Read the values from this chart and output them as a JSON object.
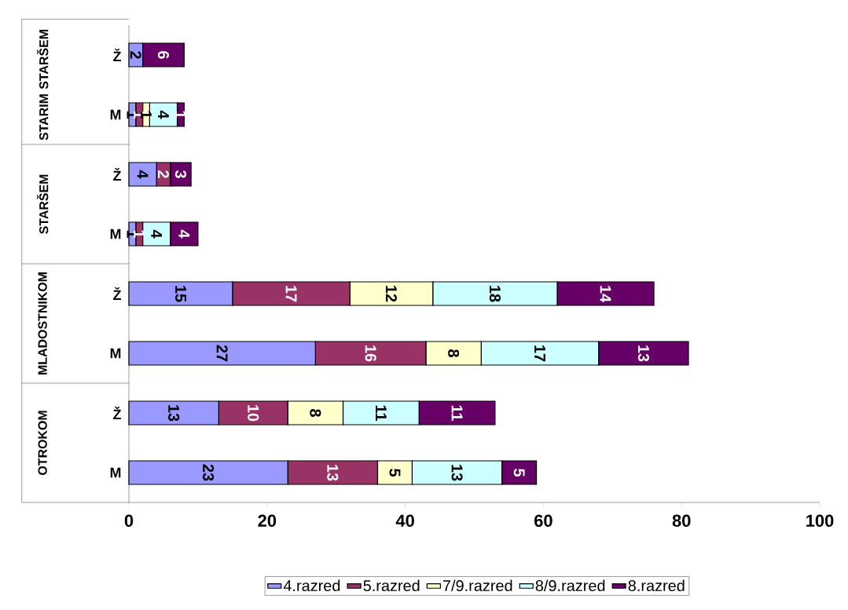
{
  "chart_data": {
    "type": "bar",
    "orientation": "horizontal",
    "stacked": true,
    "categories": [
      "Ž",
      "M",
      "Ž",
      "M",
      "Ž",
      "M",
      "Ž",
      "M"
    ],
    "annotations": [
      "STARIM STARŠEM",
      "STARŠEM",
      "MLADOSTNIKOM",
      "OTROKOM"
    ],
    "series": [
      {
        "name": "4.razred",
        "color": "#9999ff",
        "values": [
          2,
          1,
          4,
          1,
          15,
          27,
          13,
          23
        ],
        "value_labels": [
          "2",
          "1",
          "4",
          "1",
          "15",
          "27",
          "13",
          "23"
        ]
      },
      {
        "name": "5.razred",
        "color": "#993366",
        "values": [
          0,
          1,
          2,
          1,
          17,
          16,
          10,
          13
        ],
        "value_labels": [
          null,
          "1",
          "2",
          "1",
          "17",
          "16",
          "10",
          "13"
        ]
      },
      {
        "name": "7/9.razred",
        "color": "#ffffcc",
        "values": [
          0,
          1,
          0,
          0,
          12,
          8,
          8,
          5
        ],
        "value_labels": [
          null,
          "1",
          null,
          null,
          "12",
          "8",
          "8",
          "5"
        ]
      },
      {
        "name": "8/9.razred",
        "color": "#ccffff",
        "values": [
          0,
          4,
          0,
          4,
          18,
          17,
          11,
          13
        ],
        "value_labels": [
          null,
          "4",
          null,
          "4",
          "18",
          "17",
          "11",
          "13"
        ]
      },
      {
        "name": "8.razred",
        "color": "#660066",
        "values": [
          6,
          1,
          3,
          4,
          14,
          13,
          11,
          5
        ],
        "value_labels": [
          "6",
          "1",
          "3",
          "4",
          "14",
          "13",
          "11",
          "5"
        ]
      }
    ],
    "xlim": [
      0,
      100
    ],
    "xticks": [
      0,
      20,
      40,
      60,
      80,
      100
    ],
    "legend": "bottom",
    "grid": false
  }
}
